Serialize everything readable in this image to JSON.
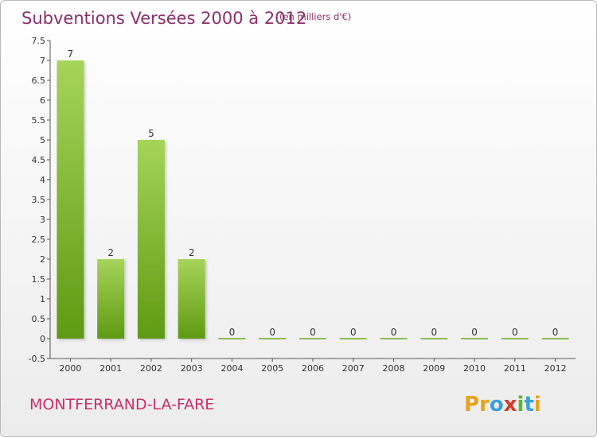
{
  "chart_data": {
    "type": "bar",
    "title": "Subventions Versées 2000 à 2012",
    "subtitle": "(en milliers d'€)",
    "categories": [
      "2000",
      "2001",
      "2002",
      "2003",
      "2004",
      "2005",
      "2006",
      "2007",
      "2008",
      "2009",
      "2010",
      "2011",
      "2012"
    ],
    "values": [
      7,
      2,
      5,
      2,
      0,
      0,
      0,
      0,
      0,
      0,
      0,
      0,
      0
    ],
    "data_labels": [
      "7",
      "2",
      "5",
      "2",
      "0",
      "0",
      "0",
      "0",
      "0",
      "0",
      "0",
      "0",
      "0"
    ],
    "ylim": [
      -0.5,
      7.5
    ],
    "yticks": [
      -0.5,
      0,
      0.5,
      1,
      1.5,
      2,
      2.5,
      3,
      3.5,
      4,
      4.5,
      5,
      5.5,
      6,
      6.5,
      7,
      7.5
    ],
    "ytick_labels": [
      "-0.5",
      "0",
      "0.5",
      "1",
      "1.5",
      "2",
      "2.5",
      "3",
      "3.5",
      "4",
      "4.5",
      "5",
      "5.5",
      "6",
      "6.5",
      "7",
      "7.5"
    ],
    "grid": false,
    "legend": "none",
    "bar_color_top": "#a6d45a",
    "bar_color_bottom": "#5e9a12"
  },
  "footer": {
    "commune": "MONTFERRAND-LA-FARE",
    "brand_letters": [
      "P",
      "r",
      "o",
      "x",
      "i",
      "t",
      "i"
    ],
    "brand_colors": [
      "#e8a31b",
      "#e8a31b",
      "#3aa0d8",
      "#d23c2c",
      "#5cb82e",
      "#3aa0d8",
      "#e8a31b"
    ]
  }
}
